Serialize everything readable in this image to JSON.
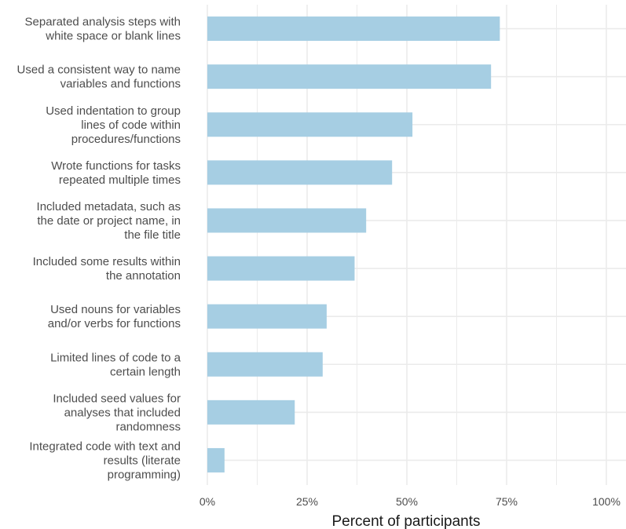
{
  "chart_data": {
    "type": "bar",
    "orientation": "horizontal",
    "title": "",
    "xlabel": "Percent of participants",
    "ylabel": "",
    "xlim": [
      0,
      1.04
    ],
    "grid": true,
    "bar_color": "#a6cee3",
    "grid_color": "#ebebeb",
    "x_ticks": [
      {
        "value": 0,
        "label": "0%"
      },
      {
        "value": 0.25,
        "label": "25%"
      },
      {
        "value": 0.5,
        "label": "50%"
      },
      {
        "value": 0.75,
        "label": "75%"
      },
      {
        "value": 1.0,
        "label": "100%"
      }
    ],
    "categories": [
      [
        "Separated analysis steps with",
        "white space or blank lines"
      ],
      [
        "Used a consistent way to name",
        "variables and functions"
      ],
      [
        "Used indentation to group",
        "lines of code within",
        "procedures/functions"
      ],
      [
        "Wrote functions for tasks",
        "repeated multiple times"
      ],
      [
        "Included metadata, such as",
        "the date or project name, in",
        "the file title"
      ],
      [
        "Included some results within",
        "the annotation"
      ],
      [
        "Used nouns for variables",
        "and/or verbs for functions"
      ],
      [
        "Limited lines of code to a",
        "certain length"
      ],
      [
        "Included seed values for",
        "analyses that included",
        "randomness"
      ],
      [
        "Integrated code with text and",
        "results (literate",
        "programming)"
      ]
    ],
    "values": [
      0.733,
      0.711,
      0.514,
      0.463,
      0.398,
      0.369,
      0.299,
      0.289,
      0.219,
      0.043
    ]
  }
}
